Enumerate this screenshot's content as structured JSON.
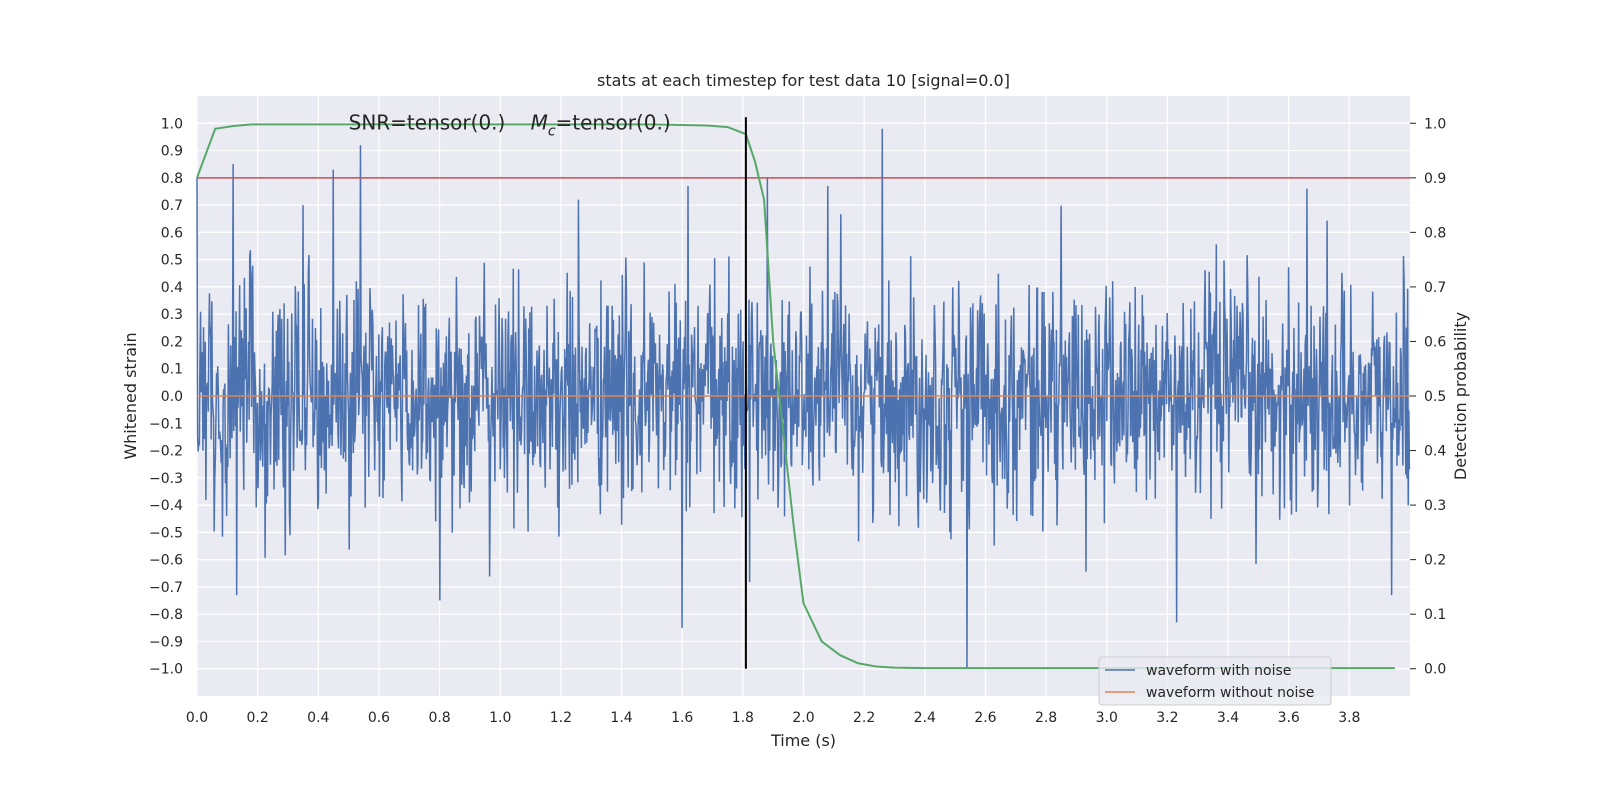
{
  "chart_data": {
    "type": "line",
    "title": "stats at each timestep for test data 10 [signal=0.0]",
    "xlabel": "Time (s)",
    "ylabel": "Whitened strain",
    "y2label": "Detection probability",
    "xlim": [
      0.0,
      4.0
    ],
    "ylim": [
      -1.1,
      1.1
    ],
    "y2lim": [
      -0.05,
      1.05
    ],
    "xticks": [
      0.0,
      0.2,
      0.4,
      0.6,
      0.8,
      1.0,
      1.2,
      1.4,
      1.6,
      1.8,
      2.0,
      2.2,
      2.4,
      2.6,
      2.8,
      3.0,
      3.2,
      3.4,
      3.6,
      3.8
    ],
    "xtick_labels": [
      "0.0",
      "0.2",
      "0.4",
      "0.6",
      "0.8",
      "1.0",
      "1.2",
      "1.4",
      "1.6",
      "1.8",
      "2.0",
      "2.2",
      "2.4",
      "2.6",
      "2.8",
      "3.0",
      "3.2",
      "3.4",
      "3.6",
      "3.8"
    ],
    "yticks": [
      -1.0,
      -0.9,
      -0.8,
      -0.7,
      -0.6,
      -0.5,
      -0.4,
      -0.3,
      -0.2,
      -0.1,
      0.0,
      0.1,
      0.2,
      0.3,
      0.4,
      0.5,
      0.6,
      0.7,
      0.8,
      0.9,
      1.0
    ],
    "ytick_labels": [
      "−1.0",
      "−0.9",
      "−0.8",
      "−0.7",
      "−0.6",
      "−0.5",
      "−0.4",
      "−0.3",
      "−0.2",
      "−0.1",
      "0.0",
      "0.1",
      "0.2",
      "0.3",
      "0.4",
      "0.5",
      "0.6",
      "0.7",
      "0.8",
      "0.9",
      "1.0"
    ],
    "y2ticks": [
      0.0,
      0.1,
      0.2,
      0.3,
      0.4,
      0.5,
      0.6,
      0.7,
      0.8,
      0.9,
      1.0
    ],
    "y2tick_labels": [
      "0.0",
      "0.1",
      "0.2",
      "0.3",
      "0.4",
      "0.5",
      "0.6",
      "0.7",
      "0.8",
      "0.9",
      "1.0"
    ],
    "grid": true,
    "legend_position": "bottom-right",
    "annotations": [
      {
        "text": "SNR=tensor(0.)",
        "x": 0.5,
        "y": 1.0
      },
      {
        "text_italic": "M",
        "text_sub": "c",
        "text_after": "=tensor(0.)",
        "x": 1.1,
        "y": 1.0
      }
    ],
    "noise_series": {
      "name": "waveform with noise",
      "color": "#4c72b0",
      "x_start": 0.0,
      "x_end": 4.0,
      "samples": 2048,
      "typical_amplitude": 0.25,
      "peaks": [
        {
          "x": 0.0,
          "y": 0.8
        },
        {
          "x": 0.12,
          "y": 0.85
        },
        {
          "x": 0.35,
          "y": 0.7
        },
        {
          "x": 0.45,
          "y": 0.83
        },
        {
          "x": 0.54,
          "y": 0.92
        },
        {
          "x": 1.62,
          "y": 0.77
        },
        {
          "x": 1.88,
          "y": 0.8
        },
        {
          "x": 2.08,
          "y": 0.77
        },
        {
          "x": 2.26,
          "y": 0.98
        },
        {
          "x": 3.66,
          "y": 0.76
        },
        {
          "x": 0.8,
          "y": -0.75
        },
        {
          "x": 1.6,
          "y": -0.85
        },
        {
          "x": 2.54,
          "y": -1.0
        },
        {
          "x": 3.23,
          "y": -0.83
        },
        {
          "x": 0.13,
          "y": -0.73
        },
        {
          "x": 3.94,
          "y": -0.73
        }
      ]
    },
    "clean_series": {
      "name": "waveform without noise",
      "color": "#dd8452",
      "y": 0.0
    },
    "probability_series": {
      "name": "Detection probability",
      "color": "#55a868",
      "axis": "right",
      "x": [
        0.0,
        0.06,
        0.12,
        0.18,
        0.4,
        0.8,
        1.2,
        1.5,
        1.68,
        1.75,
        1.81,
        1.84,
        1.87,
        1.9,
        1.94,
        1.97,
        2.0,
        2.06,
        2.12,
        2.18,
        2.24,
        2.3,
        2.4,
        2.6,
        3.0,
        3.5,
        3.95
      ],
      "y": [
        0.9,
        0.99,
        0.995,
        0.998,
        0.998,
        0.998,
        0.998,
        0.998,
        0.996,
        0.993,
        0.98,
        0.93,
        0.86,
        0.6,
        0.4,
        0.25,
        0.12,
        0.05,
        0.025,
        0.01,
        0.004,
        0.002,
        0.001,
        0.001,
        0.001,
        0.001,
        0.001
      ]
    },
    "threshold_line": {
      "axis": "right",
      "y": 0.9,
      "color": "#c44e52"
    },
    "vertical_marker": {
      "x": 1.81,
      "y_from": -1.0,
      "y_to": 1.0,
      "color": "#000000"
    },
    "legend": [
      {
        "label": "waveform with noise",
        "color": "#4c72b0"
      },
      {
        "label": "waveform without noise",
        "color": "#dd8452"
      }
    ]
  }
}
